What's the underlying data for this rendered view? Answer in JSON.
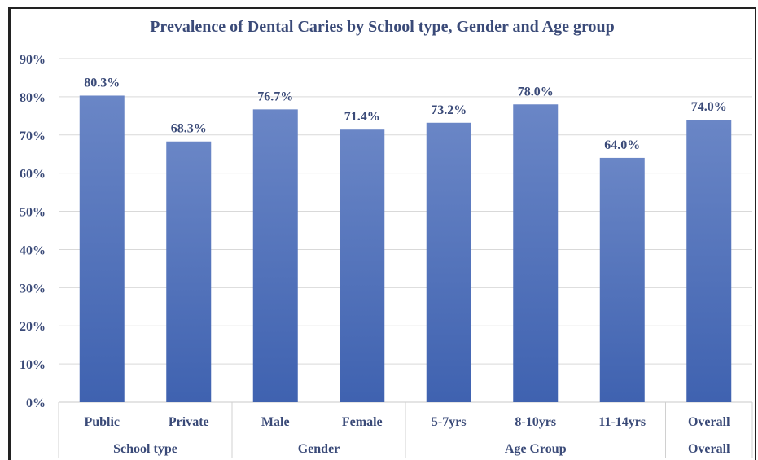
{
  "chart_data": {
    "type": "bar",
    "title": "Prevalence of Dental Caries by School type, Gender and Age group",
    "categories": [
      "Public",
      "Private",
      "Male",
      "Female",
      "5-7yrs",
      "8-10yrs",
      "11-14yrs",
      "Overall"
    ],
    "groups": [
      {
        "label": "School type",
        "categories": [
          "Public",
          "Private"
        ]
      },
      {
        "label": "Gender",
        "categories": [
          "Male",
          "Female"
        ]
      },
      {
        "label": "Age Group",
        "categories": [
          "5-7yrs",
          "8-10yrs",
          "11-14yrs"
        ]
      },
      {
        "label": "Overall",
        "categories": [
          "Overall"
        ]
      }
    ],
    "values": [
      80.3,
      68.3,
      76.7,
      71.4,
      73.2,
      78.0,
      64.0,
      74.0
    ],
    "data_labels": [
      "80.3%",
      "68.3%",
      "76.7%",
      "71.4%",
      "73.2%",
      "78.0%",
      "64.0%",
      "74.0%"
    ],
    "ylim": [
      0,
      90
    ],
    "yticks": [
      "0%",
      "10%",
      "20%",
      "30%",
      "40%",
      "50%",
      "60%",
      "70%",
      "80%",
      "90%"
    ],
    "xlabel": "",
    "ylabel": "",
    "grid": true,
    "bar_color_top": "#6a86c6",
    "bar_color_bottom": "#3f62b0",
    "legend": "none"
  }
}
